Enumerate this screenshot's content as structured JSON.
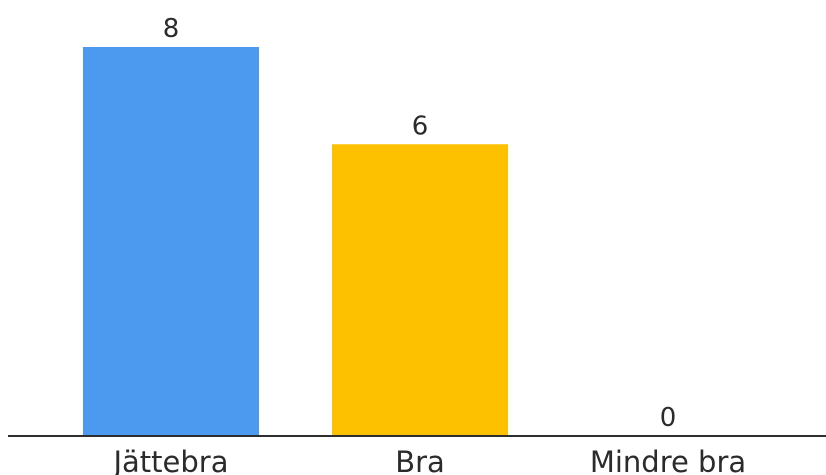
{
  "chart_data": {
    "type": "bar",
    "categories": [
      "Jättebra",
      "Bra",
      "Mindre bra"
    ],
    "values": [
      8,
      6,
      0
    ],
    "data_labels": [
      "8",
      "6",
      "0"
    ],
    "colors": [
      "#4b9af0",
      "#fdc100",
      "#4b9af0"
    ],
    "ylim": [
      0,
      8
    ],
    "grid": false,
    "legend": "none",
    "title": "",
    "xlabel": "",
    "ylabel": ""
  }
}
